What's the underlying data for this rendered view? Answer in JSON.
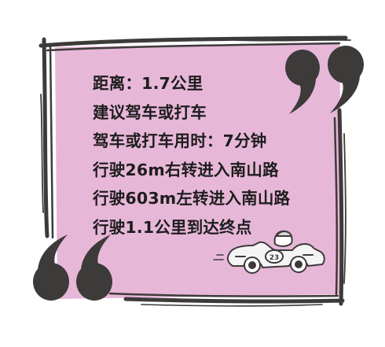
{
  "lines": [
    "距离：1.7公里",
    "建议驾车或打车",
    "驾车或打车用时：7分钟",
    "行驶26m右转进入南山路",
    "行驶603m左转进入南山路",
    "行驶1.1公里到达终点"
  ],
  "car": {
    "door_number": "23"
  },
  "colors": {
    "panel_fill": "#e7b7d8",
    "ink": "#3d3a3a",
    "text": "#1d1d1d",
    "background": "#ffffff"
  },
  "icons": [
    "closing-quote-icon",
    "opening-quote-icon",
    "race-car-icon"
  ]
}
